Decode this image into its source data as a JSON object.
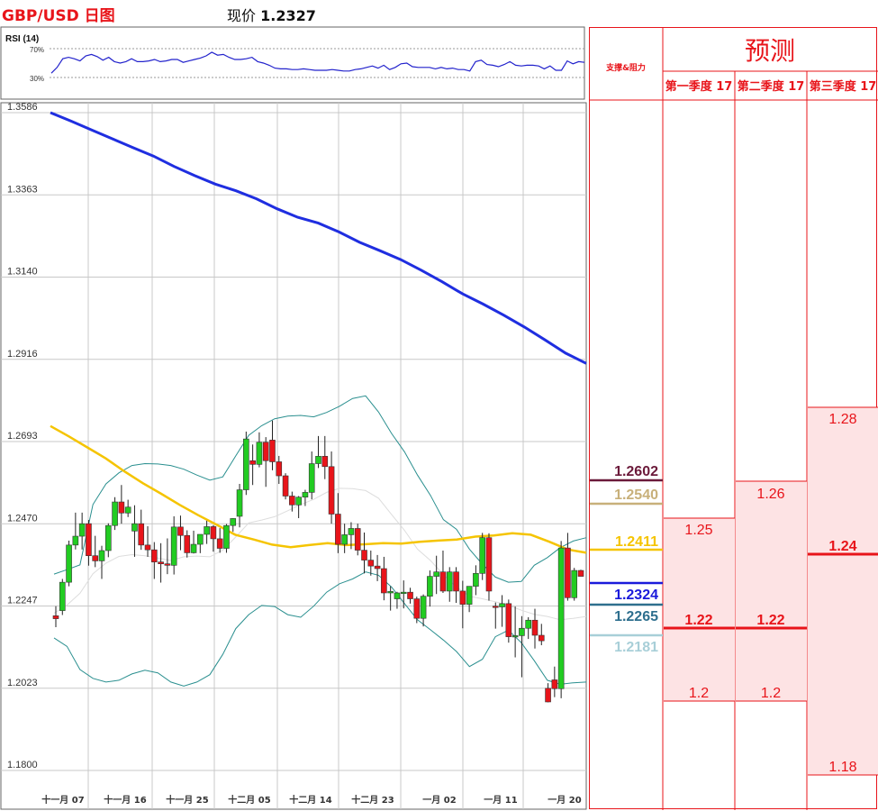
{
  "header": {
    "title": "GBP/USD 日图",
    "price_label": "现价",
    "price_value": "1.2327"
  },
  "rsi": {
    "label": "RSI (14)",
    "upper": "70%",
    "lower": "30%",
    "values": [
      36,
      44,
      56,
      58,
      56,
      53,
      60,
      62,
      59,
      54,
      58,
      52,
      50,
      52,
      56,
      52,
      52,
      53,
      55,
      52,
      53,
      55,
      55,
      51,
      53,
      55,
      57,
      60,
      65,
      61,
      62,
      58,
      55,
      55,
      56,
      58,
      52,
      50,
      47,
      43,
      42,
      42,
      41,
      41,
      42,
      41,
      40,
      40,
      40,
      41,
      40,
      39,
      39,
      41,
      42,
      44,
      46,
      43,
      47,
      41,
      44,
      49,
      50,
      45,
      44,
      44,
      44,
      42,
      44,
      42,
      43,
      41,
      41,
      39,
      52,
      54,
      48,
      47,
      45,
      48,
      52,
      47,
      46,
      47,
      47,
      46,
      42,
      46,
      40,
      40,
      53,
      49,
      52,
      51
    ]
  },
  "chart_data": {
    "type": "candlestick",
    "x_tick_labels": [
      "十一月 07",
      "十一月 16",
      "十一月 25",
      "十二月 05",
      "十二月 14",
      "十二月 23",
      "一月 02",
      "一月 11",
      "一月 20"
    ],
    "y_tick_labels": [
      "1.3586",
      "1.3363",
      "1.3140",
      "1.2916",
      "1.2693",
      "1.2470",
      "1.2247",
      "1.2023",
      "1.1800"
    ],
    "ylim": [
      1.18,
      1.3586
    ],
    "candles": [
      [
        1.222,
        1.2246,
        1.2189,
        1.2212
      ],
      [
        1.2234,
        1.232,
        1.2222,
        1.2311
      ],
      [
        1.2311,
        1.2424,
        1.23,
        1.2412
      ],
      [
        1.2412,
        1.25,
        1.24,
        1.2436
      ],
      [
        1.2436,
        1.25,
        1.24,
        1.247
      ],
      [
        1.247,
        1.248,
        1.2356,
        1.2383
      ],
      [
        1.2383,
        1.2437,
        1.2352,
        1.2369
      ],
      [
        1.2369,
        1.241,
        1.232,
        1.2397
      ],
      [
        1.2397,
        1.2471,
        1.2379,
        1.2465
      ],
      [
        1.2465,
        1.2542,
        1.2453,
        1.2529
      ],
      [
        1.2529,
        1.2575,
        1.247,
        1.2499
      ],
      [
        1.2499,
        1.2535,
        1.2488,
        1.2515
      ],
      [
        1.245,
        1.252,
        1.238,
        1.247
      ],
      [
        1.247,
        1.2508,
        1.2399,
        1.2412
      ],
      [
        1.2412,
        1.2463,
        1.238,
        1.2399
      ],
      [
        1.2399,
        1.242,
        1.232,
        1.2366
      ],
      [
        1.2366,
        1.2417,
        1.231,
        1.2361
      ],
      [
        1.2361,
        1.243,
        1.2333,
        1.2357
      ],
      [
        1.2357,
        1.249,
        1.2332,
        1.2461
      ],
      [
        1.2461,
        1.2492,
        1.2398,
        1.2438
      ],
      [
        1.2438,
        1.2452,
        1.2378,
        1.2391
      ],
      [
        1.2391,
        1.2451,
        1.2389,
        1.2414
      ],
      [
        1.2414,
        1.2441,
        1.239,
        1.2441
      ],
      [
        1.2441,
        1.2478,
        1.2415,
        1.2462
      ],
      [
        1.2462,
        1.2466,
        1.2394,
        1.2429
      ],
      [
        1.2429,
        1.2458,
        1.2391,
        1.2403
      ],
      [
        1.2403,
        1.2469,
        1.2391,
        1.2465
      ],
      [
        1.2465,
        1.2485,
        1.2448,
        1.2484
      ],
      [
        1.249,
        1.2578,
        1.246,
        1.2562
      ],
      [
        1.2562,
        1.272,
        1.2548,
        1.27
      ],
      [
        1.2641,
        1.2685,
        1.2575,
        1.2631
      ],
      [
        1.2631,
        1.2718,
        1.2623,
        1.2691
      ],
      [
        1.2691,
        1.2705,
        1.257,
        1.2641
      ],
      [
        1.2697,
        1.275,
        1.2615,
        1.2638
      ],
      [
        1.2638,
        1.2654,
        1.2578,
        1.26
      ],
      [
        1.26,
        1.2607,
        1.2536,
        1.2545
      ],
      [
        1.2545,
        1.2557,
        1.2503,
        1.2521
      ],
      [
        1.2521,
        1.2545,
        1.2485,
        1.2542
      ],
      [
        1.2542,
        1.2562,
        1.2518,
        1.2555
      ],
      [
        1.2555,
        1.2666,
        1.2536,
        1.2633
      ],
      [
        1.2633,
        1.2708,
        1.2621,
        1.2653
      ],
      [
        1.2653,
        1.2708,
        1.2591,
        1.2625
      ],
      [
        1.2625,
        1.2666,
        1.247,
        1.2496
      ],
      [
        1.2496,
        1.2553,
        1.239,
        1.2414
      ],
      [
        1.2414,
        1.247,
        1.239,
        1.244
      ],
      [
        1.244,
        1.2474,
        1.2401,
        1.2457
      ],
      [
        1.2457,
        1.247,
        1.2384,
        1.2398
      ],
      [
        1.2398,
        1.2446,
        1.2335,
        1.2371
      ],
      [
        1.2371,
        1.2397,
        1.2329,
        1.2355
      ],
      [
        1.2355,
        1.2385,
        1.2314,
        1.2348
      ],
      [
        1.2348,
        1.238,
        1.2262,
        1.2282
      ],
      [
        1.2282,
        1.23,
        1.2234,
        1.2286
      ],
      [
        1.2266,
        1.2285,
        1.2239,
        1.2282
      ],
      [
        1.2282,
        1.2316,
        1.224,
        1.2284
      ],
      [
        1.2284,
        1.2296,
        1.2253,
        1.2266
      ],
      [
        1.2266,
        1.2272,
        1.22,
        1.2213
      ],
      [
        1.2213,
        1.2278,
        1.2191,
        1.2273
      ],
      [
        1.2273,
        1.2343,
        1.2245,
        1.2327
      ],
      [
        1.2327,
        1.2383,
        1.2279,
        1.2339
      ],
      [
        1.2339,
        1.2397,
        1.2282,
        1.2287
      ],
      [
        1.2287,
        1.2352,
        1.2258,
        1.2339
      ],
      [
        1.2339,
        1.2352,
        1.2255,
        1.2287
      ],
      [
        1.2287,
        1.2315,
        1.2186,
        1.2251
      ],
      [
        1.2251,
        1.23,
        1.223,
        1.23
      ],
      [
        1.23,
        1.2357,
        1.2276,
        1.2335
      ],
      [
        1.2335,
        1.2445,
        1.2317,
        1.2432
      ],
      [
        1.2432,
        1.2444,
        1.2261,
        1.2287
      ],
      [
        1.2246,
        1.2256,
        1.2185,
        1.2244
      ],
      [
        1.2244,
        1.2276,
        1.219,
        1.2253
      ],
      [
        1.2253,
        1.2264,
        1.2147,
        1.2163
      ],
      [
        1.2163,
        1.2245,
        1.2107,
        1.2166
      ],
      [
        1.2166,
        1.2219,
        1.2053,
        1.2186
      ],
      [
        1.2186,
        1.2216,
        1.2157,
        1.2208
      ],
      [
        1.2208,
        1.2239,
        1.2131,
        1.2167
      ],
      [
        1.2167,
        1.2198,
        1.214,
        1.2152
      ],
      [
        1.2023,
        1.2037,
        1.1985,
        1.1986
      ],
      [
        1.2046,
        1.2082,
        1.1999,
        1.2022
      ],
      [
        1.2022,
        1.2423,
        1.1996,
        1.2404
      ],
      [
        1.2404,
        1.2445,
        1.2261,
        1.2269
      ],
      [
        1.2269,
        1.235,
        1.2261,
        1.2343
      ],
      [
        1.2343,
        1.2345,
        1.2327,
        1.2327
      ]
    ],
    "ma200": [
      1.3586,
      1.3563,
      1.3539,
      1.3515,
      1.3491,
      1.3468,
      1.344,
      1.3415,
      1.3392,
      1.3374,
      1.3352,
      1.3325,
      1.3302,
      1.3286,
      1.3262,
      1.3234,
      1.3211,
      1.3187,
      1.3158,
      1.3127,
      1.3094,
      1.3066,
      1.3036,
      1.3004,
      1.2969,
      1.2933,
      1.2905
    ],
    "ma50": [
      1.2735,
      1.2707,
      1.2677,
      1.2647,
      1.2612,
      1.258,
      1.2551,
      1.2521,
      1.2493,
      1.2467,
      1.244,
      1.2427,
      1.2413,
      1.2406,
      1.2412,
      1.2417,
      1.2412,
      1.2414,
      1.2417,
      1.2416,
      1.2421,
      1.2424,
      1.2427,
      1.2435,
      1.2438,
      1.2444,
      1.244,
      1.2421,
      1.24,
      1.2391
    ],
    "bb_upper": [
      1.2333,
      1.2345,
      1.2358,
      1.2522,
      1.2578,
      1.2608,
      1.2628,
      1.2633,
      1.2632,
      1.2628,
      1.2618,
      1.2602,
      1.2588,
      1.2597,
      1.2654,
      1.271,
      1.2736,
      1.2755,
      1.2762,
      1.2764,
      1.276,
      1.2772,
      1.2789,
      1.281,
      1.2817,
      1.2773,
      1.2715,
      1.2665,
      1.2602,
      1.2547,
      1.2481,
      1.2455,
      1.2401,
      1.236,
      1.2325,
      1.2311,
      1.2313,
      1.2357,
      1.2378,
      1.2405,
      1.2423,
      1.2432
    ],
    "bb_mid": [
      1.2227,
      1.2249,
      1.2281,
      1.2334,
      1.2363,
      1.2381,
      1.2386,
      1.2383,
      1.2377,
      1.237,
      1.238,
      1.2382,
      1.238,
      1.2398,
      1.2434,
      1.2472,
      1.248,
      1.2489,
      1.2505,
      1.2522,
      1.2536,
      1.2555,
      1.2566,
      1.2565,
      1.256,
      1.2539,
      1.2495,
      1.2452,
      1.2401,
      1.237,
      1.2332,
      1.2298,
      1.2273,
      1.2266,
      1.2258,
      1.2249,
      1.2235,
      1.2224,
      1.2218,
      1.2209,
      1.2213,
      1.2218
    ],
    "bb_lower": [
      1.216,
      1.2137,
      1.2074,
      1.205,
      1.204,
      1.2045,
      1.2062,
      1.2072,
      1.2065,
      1.204,
      1.2029,
      1.204,
      1.206,
      1.2115,
      1.2185,
      1.2223,
      1.2248,
      1.2245,
      1.2223,
      1.2216,
      1.2246,
      1.2284,
      1.2307,
      1.232,
      1.2339,
      1.233,
      1.2298,
      1.2253,
      1.2209,
      1.2182,
      1.2154,
      1.2123,
      1.2082,
      1.2102,
      1.2163,
      1.2181,
      1.2147,
      1.2098,
      1.2045,
      1.2034,
      1.2038,
      1.204
    ]
  },
  "levels": [
    {
      "value": "1.2602",
      "color": "#6b1a3a"
    },
    {
      "value": "1.2540",
      "color": "#c8b07a"
    },
    {
      "value": "1.2411",
      "color": "#f5c400"
    },
    {
      "value": "1.2324",
      "color": "#1a1adb"
    },
    {
      "value": "1.2265",
      "color": "#2e6f8e"
    },
    {
      "value": "1.2181",
      "color": "#a8cfd8"
    }
  ],
  "forecast": {
    "support_header": "支撑&阻力",
    "title": "预测",
    "columns": [
      {
        "header": "第一季度 17",
        "high": "1.25",
        "mid": "1.22",
        "low": "1.2"
      },
      {
        "header": "第二季度 17",
        "high": "1.26",
        "mid": "1.22",
        "low": "1.2"
      },
      {
        "header": "第三季度 17",
        "high": "1.28",
        "mid": "1.24",
        "low": "1.18"
      }
    ]
  },
  "colors": {
    "bull": "#22cc22",
    "bear": "#e8141a",
    "ma200": "#1f2ee0",
    "ma50": "#f5c400",
    "bb": "#2a8f8f",
    "bb_mid": "#dddddd",
    "grid": "#c8c8c8",
    "accent": "#e8141a"
  }
}
